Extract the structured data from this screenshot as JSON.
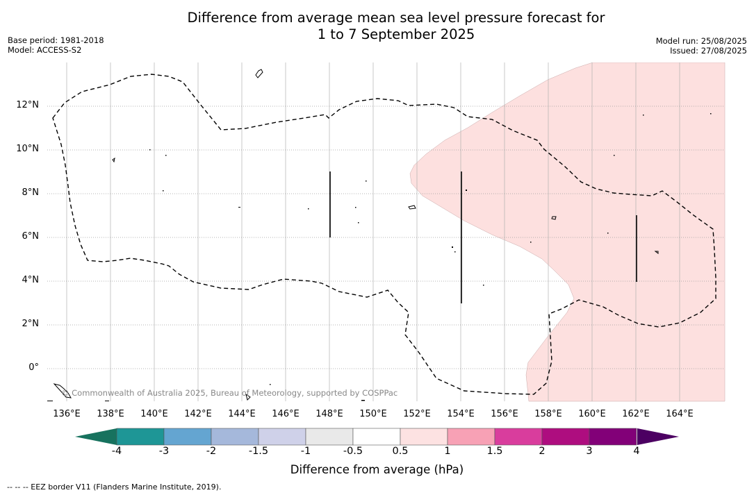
{
  "title_line1": "Difference from average mean sea level pressure forecast for",
  "title_line2": "1 to 7 September 2025",
  "meta_left": {
    "base_period": "Base period: 1981-2018",
    "model": "Model: ACCESS-S2"
  },
  "meta_right": {
    "model_run": "Model run: 25/08/2025",
    "issued": "Issued: 27/08/2025"
  },
  "copyright": "© Commonwealth of Australia 2025, Bureau of Meteorology, supported by COSPPac",
  "lon_labels": [
    "136°E",
    "138°E",
    "140°E",
    "142°E",
    "144°E",
    "146°E",
    "148°E",
    "150°E",
    "152°E",
    "154°E",
    "156°E",
    "158°E",
    "160°E",
    "162°E",
    "164°E"
  ],
  "lat_labels": [
    "12°N",
    "10°N",
    "8°N",
    "6°N",
    "4°N",
    "2°N",
    "0°"
  ],
  "colorbar": {
    "title": "Difference from average (hPa)",
    "ticks": [
      "-4",
      "-3",
      "-2",
      "-1.5",
      "-1",
      "-0.5",
      "0.5",
      "1",
      "1.5",
      "2",
      "3",
      "4"
    ],
    "colors": [
      "#1e9696",
      "#64a5d1",
      "#a5b8db",
      "#cfd1e9",
      "#e9e9e9",
      "#ffffff",
      "#fde2e2",
      "#f7a1b5",
      "#d93d9d",
      "#ae0d7f",
      "#820078"
    ],
    "under_color": "#17725e",
    "over_color": "#4c0062"
  },
  "shading_color": "#fde0df",
  "footer": "--  --  -- EEZ border V11 (Flanders Marine Institute, 2019)."
}
